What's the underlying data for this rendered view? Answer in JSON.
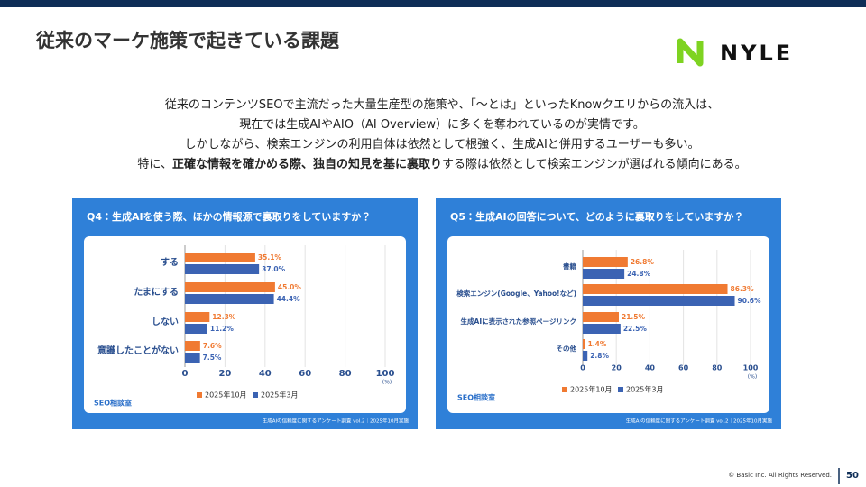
{
  "header": {
    "title": "従来のマーケ施策で起きている課題",
    "logo": "NYLE"
  },
  "body": {
    "lines": [
      [
        {
          "text": "従来のコンテンツSEOで主流だった大量生産型の施策や、「〜とは」といったKnowクエリからの流入は、",
          "bold": false
        }
      ],
      [
        {
          "text": "現在では生成AIやAIO（AI Overview）に多くを奪われているのが実情です。",
          "bold": false
        }
      ],
      [
        {
          "text": "しかしながら、検索エンジンの利用自体は依然として根強く、生成AIと併用するユーザーも多い。",
          "bold": false
        }
      ],
      [
        {
          "text": "特に、",
          "bold": false
        },
        {
          "text": "正確な情報を確かめる際、独自の知見を基に裏取り",
          "bold": true
        },
        {
          "text": "する際は依然として検索エンジンが選ばれる傾向にある。",
          "bold": false
        }
      ]
    ]
  },
  "chart_data": [
    {
      "type": "hbar",
      "title": "Q4：生成AIを使う際、ほかの情報源で裏取りをしていますか？",
      "categories": [
        "する",
        "たまにする",
        "しない",
        "意識したことがない"
      ],
      "series": [
        {
          "name": "2025年10月",
          "color": "#f07a32",
          "values": [
            35.1,
            45.0,
            12.3,
            7.6
          ],
          "value_labels": [
            "35.1%",
            "45.0%",
            "12.3%",
            "7.6%"
          ]
        },
        {
          "name": "2025年3月",
          "color": "#3b63b3",
          "values": [
            37.0,
            44.4,
            11.2,
            7.5
          ],
          "value_labels": [
            "37.0%",
            "44.4%",
            "11.2%",
            "7.5%"
          ]
        }
      ],
      "xlim": [
        0,
        100
      ],
      "xticks": [
        0,
        20,
        40,
        60,
        80,
        100
      ],
      "x_unit": "(%)",
      "grid": true,
      "brand": "SEO相談室",
      "source": "生成AIの信頼度に関するアンケート調査 vol.2｜2025年10月実施"
    },
    {
      "type": "hbar",
      "title": "Q5：生成AIの回答について、どのように裏取りをしていますか？",
      "categories": [
        "書籍",
        "検索エンジン(Google、Yahoo!など)",
        "生成AIに表示された参照ページリンク",
        "その他"
      ],
      "series": [
        {
          "name": "2025年10月",
          "color": "#f07a32",
          "values": [
            26.8,
            86.3,
            21.5,
            1.4
          ],
          "value_labels": [
            "26.8%",
            "86.3%",
            "21.5%",
            "1.4%"
          ]
        },
        {
          "name": "2025年3月",
          "color": "#3b63b3",
          "values": [
            24.8,
            90.6,
            22.5,
            2.8
          ],
          "value_labels": [
            "24.8%",
            "90.6%",
            "22.5%",
            "2.8%"
          ]
        }
      ],
      "xlim": [
        0,
        100
      ],
      "xticks": [
        0,
        20,
        40,
        60,
        80,
        100
      ],
      "x_unit": "(%)",
      "grid": true,
      "brand": "SEO相談室",
      "source": "生成AIの信頼度に関するアンケート調査 vol.2｜2025年10月実施"
    }
  ],
  "footer": {
    "copyright": "© Basic Inc. All Rights Reserved.",
    "page": "50"
  }
}
